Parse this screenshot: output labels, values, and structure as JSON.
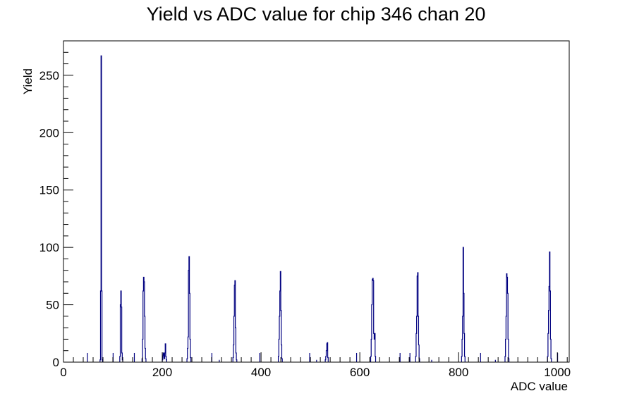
{
  "chart_data": {
    "type": "histogram",
    "title": "Yield vs ADC value for chip 346 chan 20",
    "xlabel": "ADC value",
    "ylabel": "Yield",
    "xlim": [
      0,
      1024
    ],
    "ylim": [
      0,
      280
    ],
    "xticks": [
      0,
      200,
      400,
      600,
      800,
      1000
    ],
    "yticks": [
      0,
      50,
      100,
      150,
      200,
      250
    ],
    "grid": false,
    "line_color": "#000080",
    "peaks": [
      {
        "x": [
          74,
          75,
          76,
          77,
          78
        ],
        "y": [
          2,
          62,
          267,
          62,
          2
        ]
      },
      {
        "x": [
          114,
          115,
          116,
          117,
          118,
          119
        ],
        "y": [
          5,
          50,
          62,
          48,
          8,
          2
        ]
      },
      {
        "x": [
          159,
          160,
          161,
          162,
          163,
          164,
          165,
          166
        ],
        "y": [
          3,
          20,
          62,
          74,
          70,
          40,
          12,
          3
        ]
      },
      {
        "x": [
          200,
          202,
          204,
          205,
          206,
          207,
          208
        ],
        "y": [
          2,
          8,
          3,
          8,
          16,
          5,
          2
        ]
      },
      {
        "x": [
          250,
          251,
          252,
          253,
          254,
          255,
          256,
          257
        ],
        "y": [
          3,
          12,
          22,
          80,
          92,
          60,
          20,
          4
        ]
      },
      {
        "x": [
          343,
          344,
          345,
          346,
          347,
          348,
          349,
          350
        ],
        "y": [
          4,
          15,
          40,
          67,
          71,
          30,
          8,
          2
        ]
      },
      {
        "x": [
          435,
          436,
          437,
          438,
          439,
          440,
          441,
          442
        ],
        "y": [
          5,
          20,
          40,
          62,
          79,
          45,
          15,
          3
        ]
      },
      {
        "x": [
          530,
          531,
          532,
          533,
          534,
          535
        ],
        "y": [
          2,
          5,
          10,
          16,
          17,
          4
        ]
      },
      {
        "x": [
          622,
          623,
          624,
          625,
          626,
          627,
          628,
          629,
          630,
          631
        ],
        "y": [
          5,
          20,
          50,
          72,
          73,
          71,
          25,
          20,
          25,
          5
        ]
      },
      {
        "x": [
          713,
          714,
          715,
          716,
          717,
          718,
          719,
          720
        ],
        "y": [
          5,
          25,
          40,
          75,
          78,
          40,
          15,
          3
        ]
      },
      {
        "x": [
          806,
          807,
          808,
          809,
          810,
          811,
          812
        ],
        "y": [
          5,
          20,
          40,
          100,
          60,
          25,
          5
        ]
      },
      {
        "x": [
          894,
          895,
          896,
          897,
          898,
          899,
          900,
          901
        ],
        "y": [
          5,
          20,
          40,
          77,
          74,
          60,
          20,
          3
        ]
      },
      {
        "x": [
          980,
          981,
          982,
          983,
          984,
          985,
          986,
          987
        ],
        "y": [
          5,
          25,
          45,
          66,
          96,
          62,
          20,
          3
        ]
      }
    ],
    "isolated": [
      {
        "x": 48,
        "y": 8
      },
      {
        "x": 100,
        "y": 8
      },
      {
        "x": 143,
        "y": 8
      },
      {
        "x": 300,
        "y": 8
      },
      {
        "x": 315,
        "y": 2
      },
      {
        "x": 397,
        "y": 8
      },
      {
        "x": 498,
        "y": 8
      },
      {
        "x": 512,
        "y": 2
      },
      {
        "x": 593,
        "y": 8
      },
      {
        "x": 681,
        "y": 8
      },
      {
        "x": 701,
        "y": 8
      },
      {
        "x": 745,
        "y": 2
      },
      {
        "x": 844,
        "y": 8
      },
      {
        "x": 874,
        "y": 2
      },
      {
        "x": 1000,
        "y": 8
      }
    ]
  }
}
